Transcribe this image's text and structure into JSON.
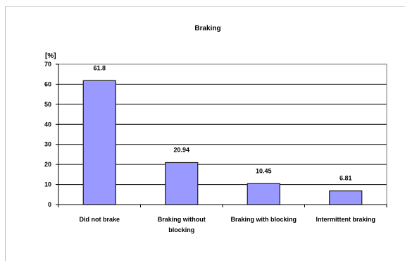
{
  "chart_data": {
    "type": "bar",
    "title": "Braking",
    "ylabel": "[%]",
    "xlabel": "",
    "categories": [
      [
        "Did not brake"
      ],
      [
        "Braking without",
        "blocking"
      ],
      [
        "Braking with blocking"
      ],
      [
        "Intermittent braking"
      ]
    ],
    "values": [
      61.8,
      20.94,
      10.45,
      6.81
    ],
    "data_labels": [
      "61.8",
      "20.94",
      "10.45",
      "6.81"
    ],
    "ylim": [
      0,
      70
    ],
    "yticks": [
      0,
      10,
      20,
      30,
      40,
      50,
      60,
      70
    ],
    "grid": true,
    "legend": "none",
    "colors": {
      "bar_fill": "#9999ff",
      "bar_stroke": "#1a1a1a",
      "grid": "#000000"
    }
  }
}
